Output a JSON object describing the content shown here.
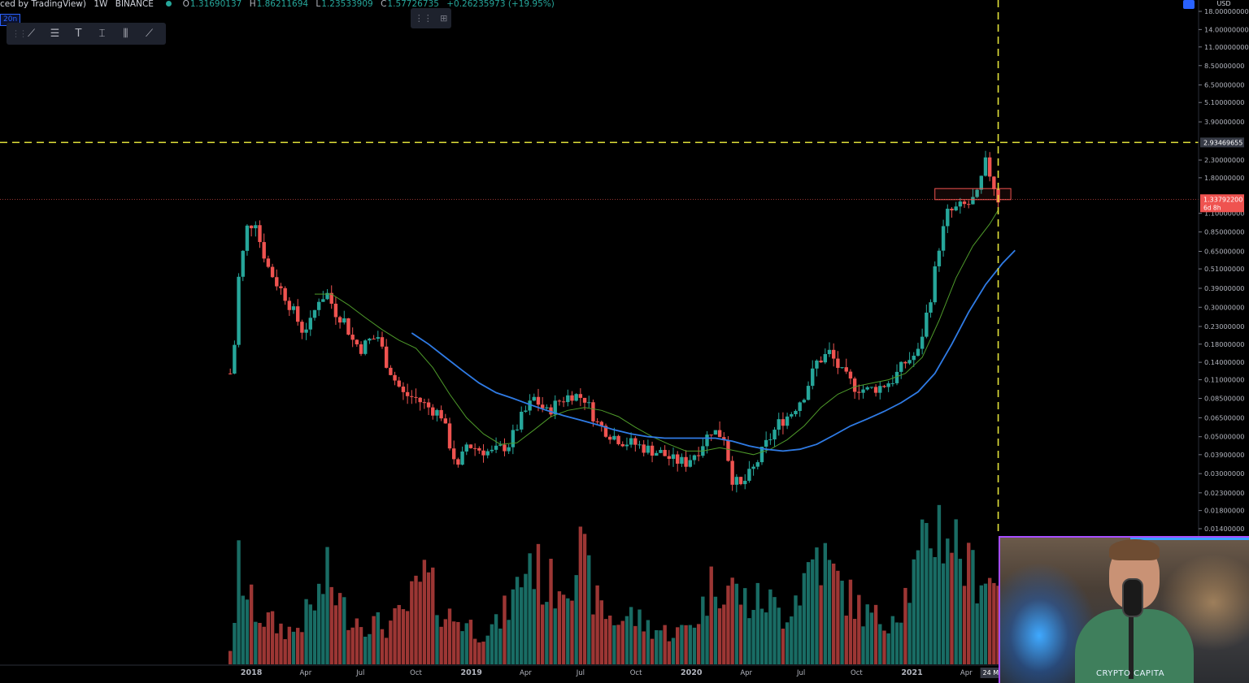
{
  "header": {
    "title": "ced by TradingView)",
    "interval": "1W",
    "exchange": "BINANCE",
    "open_label": "O",
    "open": "1.31690137",
    "high_label": "H",
    "high": "1.86211694",
    "low_label": "L",
    "low": "1.23533909",
    "close_label": "C",
    "close": "1.57726735",
    "change": "+0.26235973 (+19.95%)"
  },
  "tag_label": "20n",
  "toolbar": {
    "icons": [
      "trendline-icon",
      "fib-icon",
      "text-icon",
      "measure-icon",
      "pattern-icon",
      "brush-icon"
    ]
  },
  "colors": {
    "up": "#26a69a",
    "down": "#ef5350",
    "ma_fast": "#4e9a2a",
    "ma_slow": "#2f7be5",
    "crosshair": "#e2e23b",
    "box": "#ef5350"
  },
  "price_axis": {
    "currency": "USD",
    "scale": "log",
    "ticks": [
      "18.00000000",
      "14.00000000",
      "11.00000000",
      "8.50000000",
      "6.50000000",
      "5.10000000",
      "3.90000000",
      "2.30000000",
      "1.80000000",
      "1.10000000",
      "0.85000000",
      "0.65000000",
      "0.51000000",
      "0.39000000",
      "0.30000000",
      "0.23000000",
      "0.18000000",
      "0.14000000",
      "0.11000000",
      "0.08500000",
      "0.06500000",
      "0.05000000",
      "0.03900000",
      "0.03000000",
      "0.02300000",
      "0.01800000",
      "0.01400000"
    ],
    "crosshair_label": "2.93469655",
    "last_price_label": "1.33792200",
    "countdown_label": "6d 8h"
  },
  "time_axis": {
    "ticks": [
      {
        "label": "2018",
        "year": true,
        "date": "2018-01-01"
      },
      {
        "label": "Apr",
        "year": false,
        "date": "2018-04-01"
      },
      {
        "label": "Jul",
        "year": false,
        "date": "2018-07-01"
      },
      {
        "label": "Oct",
        "year": false,
        "date": "2018-10-01"
      },
      {
        "label": "2019",
        "year": true,
        "date": "2019-01-01"
      },
      {
        "label": "Apr",
        "year": false,
        "date": "2019-04-01"
      },
      {
        "label": "Jul",
        "year": false,
        "date": "2019-07-01"
      },
      {
        "label": "Oct",
        "year": false,
        "date": "2019-10-01"
      },
      {
        "label": "2020",
        "year": true,
        "date": "2020-01-01"
      },
      {
        "label": "Apr",
        "year": false,
        "date": "2020-04-01"
      },
      {
        "label": "Jul",
        "year": false,
        "date": "2020-07-01"
      },
      {
        "label": "Oct",
        "year": false,
        "date": "2020-10-01"
      },
      {
        "label": "2021",
        "year": true,
        "date": "2021-01-01"
      },
      {
        "label": "Apr",
        "year": false,
        "date": "2021-04-01"
      }
    ],
    "crosshair_label": "24 M"
  },
  "chart_data": {
    "type": "candlestick",
    "interval": "1W",
    "exchange": "BINANCE",
    "scale": "log",
    "ylim": [
      0.014,
      18
    ],
    "xlim": [
      "2017-11-20",
      "2021-05-30"
    ],
    "crosshair": {
      "price": 2.93469655,
      "date": "2021-05-24"
    },
    "last_price": 1.337922,
    "resistance_box": {
      "from": "2021-02-08",
      "to": "2021-06-14",
      "low": 1.33,
      "high": 1.55
    },
    "price_points": [
      [
        "2017-11-27",
        0.12
      ],
      [
        "2017-12-04",
        0.18
      ],
      [
        "2017-12-11",
        0.45
      ],
      [
        "2017-12-25",
        0.9
      ],
      [
        "2018-01-08",
        1.0
      ],
      [
        "2018-01-15",
        0.75
      ],
      [
        "2018-01-29",
        0.52
      ],
      [
        "2018-02-12",
        0.42
      ],
      [
        "2018-02-26",
        0.35
      ],
      [
        "2018-03-12",
        0.28
      ],
      [
        "2018-03-26",
        0.22
      ],
      [
        "2018-04-09",
        0.24
      ],
      [
        "2018-04-23",
        0.34
      ],
      [
        "2018-05-07",
        0.36
      ],
      [
        "2018-05-21",
        0.28
      ],
      [
        "2018-06-04",
        0.25
      ],
      [
        "2018-06-18",
        0.19
      ],
      [
        "2018-07-02",
        0.17
      ],
      [
        "2018-07-16",
        0.19
      ],
      [
        "2018-07-30",
        0.2
      ],
      [
        "2018-08-13",
        0.14
      ],
      [
        "2018-08-27",
        0.11
      ],
      [
        "2018-09-10",
        0.09
      ],
      [
        "2018-10-01",
        0.085
      ],
      [
        "2018-10-22",
        0.075
      ],
      [
        "2018-11-12",
        0.068
      ],
      [
        "2018-11-26",
        0.045
      ],
      [
        "2018-12-10",
        0.032
      ],
      [
        "2018-12-24",
        0.045
      ],
      [
        "2019-01-14",
        0.042
      ],
      [
        "2019-02-04",
        0.04
      ],
      [
        "2019-03-04",
        0.045
      ],
      [
        "2019-03-25",
        0.065
      ],
      [
        "2019-04-15",
        0.085
      ],
      [
        "2019-05-06",
        0.07
      ],
      [
        "2019-05-27",
        0.082
      ],
      [
        "2019-06-17",
        0.09
      ],
      [
        "2019-07-08",
        0.085
      ],
      [
        "2019-07-29",
        0.06
      ],
      [
        "2019-08-19",
        0.052
      ],
      [
        "2019-09-09",
        0.047
      ],
      [
        "2019-09-30",
        0.045
      ],
      [
        "2019-10-21",
        0.042
      ],
      [
        "2019-11-11",
        0.04
      ],
      [
        "2019-12-02",
        0.036
      ],
      [
        "2019-12-23",
        0.035
      ],
      [
        "2020-01-13",
        0.042
      ],
      [
        "2020-02-03",
        0.055
      ],
      [
        "2020-02-24",
        0.05
      ],
      [
        "2020-03-09",
        0.028
      ],
      [
        "2020-03-23",
        0.025
      ],
      [
        "2020-04-13",
        0.032
      ],
      [
        "2020-05-04",
        0.045
      ],
      [
        "2020-05-25",
        0.06
      ],
      [
        "2020-06-15",
        0.07
      ],
      [
        "2020-07-06",
        0.09
      ],
      [
        "2020-07-27",
        0.14
      ],
      [
        "2020-08-17",
        0.16
      ],
      [
        "2020-09-07",
        0.12
      ],
      [
        "2020-09-28",
        0.1
      ],
      [
        "2020-10-19",
        0.095
      ],
      [
        "2020-11-09",
        0.1
      ],
      [
        "2020-11-30",
        0.11
      ],
      [
        "2020-12-21",
        0.14
      ],
      [
        "2021-01-11",
        0.16
      ],
      [
        "2021-02-01",
        0.35
      ],
      [
        "2021-02-15",
        0.7
      ],
      [
        "2021-03-01",
        1.1
      ],
      [
        "2021-03-22",
        1.2
      ],
      [
        "2021-04-05",
        1.25
      ],
      [
        "2021-04-19",
        1.4
      ],
      [
        "2021-05-03",
        2.2
      ],
      [
        "2021-05-10",
        1.9
      ],
      [
        "2021-05-17",
        1.6
      ],
      [
        "2021-05-24",
        1.34
      ]
    ],
    "ma_fast_points": [
      [
        "2018-04-16",
        0.36
      ],
      [
        "2018-05-14",
        0.36
      ],
      [
        "2018-06-11",
        0.31
      ],
      [
        "2018-07-09",
        0.26
      ],
      [
        "2018-08-06",
        0.22
      ],
      [
        "2018-09-03",
        0.19
      ],
      [
        "2018-10-01",
        0.17
      ],
      [
        "2018-10-29",
        0.13
      ],
      [
        "2018-11-26",
        0.09
      ],
      [
        "2018-12-24",
        0.065
      ],
      [
        "2019-01-21",
        0.052
      ],
      [
        "2019-02-18",
        0.045
      ],
      [
        "2019-03-18",
        0.046
      ],
      [
        "2019-04-15",
        0.055
      ],
      [
        "2019-05-13",
        0.066
      ],
      [
        "2019-06-10",
        0.072
      ],
      [
        "2019-07-08",
        0.075
      ],
      [
        "2019-08-05",
        0.072
      ],
      [
        "2019-09-02",
        0.066
      ],
      [
        "2019-09-30",
        0.057
      ],
      [
        "2019-10-28",
        0.05
      ],
      [
        "2019-11-25",
        0.045
      ],
      [
        "2019-12-23",
        0.041
      ],
      [
        "2020-01-20",
        0.041
      ],
      [
        "2020-02-17",
        0.043
      ],
      [
        "2020-03-16",
        0.041
      ],
      [
        "2020-04-13",
        0.039
      ],
      [
        "2020-05-11",
        0.042
      ],
      [
        "2020-06-08",
        0.048
      ],
      [
        "2020-07-06",
        0.058
      ],
      [
        "2020-08-03",
        0.075
      ],
      [
        "2020-08-31",
        0.09
      ],
      [
        "2020-09-28",
        0.1
      ],
      [
        "2020-10-26",
        0.105
      ],
      [
        "2020-11-23",
        0.11
      ],
      [
        "2020-12-21",
        0.12
      ],
      [
        "2021-01-18",
        0.15
      ],
      [
        "2021-02-15",
        0.25
      ],
      [
        "2021-03-15",
        0.45
      ],
      [
        "2021-04-12",
        0.7
      ],
      [
        "2021-05-10",
        0.95
      ],
      [
        "2021-05-24",
        1.15
      ]
    ],
    "ma_slow_points": [
      [
        "2018-09-24",
        0.21
      ],
      [
        "2018-10-22",
        0.18
      ],
      [
        "2018-11-19",
        0.15
      ],
      [
        "2018-12-17",
        0.125
      ],
      [
        "2019-01-14",
        0.105
      ],
      [
        "2019-02-11",
        0.092
      ],
      [
        "2019-03-11",
        0.085
      ],
      [
        "2019-04-08",
        0.078
      ],
      [
        "2019-05-06",
        0.072
      ],
      [
        "2019-06-03",
        0.067
      ],
      [
        "2019-07-01",
        0.063
      ],
      [
        "2019-07-29",
        0.059
      ],
      [
        "2019-08-26",
        0.055
      ],
      [
        "2019-09-23",
        0.052
      ],
      [
        "2019-10-21",
        0.05
      ],
      [
        "2019-11-18",
        0.049
      ],
      [
        "2019-12-16",
        0.049
      ],
      [
        "2020-01-13",
        0.049
      ],
      [
        "2020-02-10",
        0.049
      ],
      [
        "2020-03-09",
        0.047
      ],
      [
        "2020-04-06",
        0.044
      ],
      [
        "2020-05-04",
        0.042
      ],
      [
        "2020-06-01",
        0.041
      ],
      [
        "2020-06-29",
        0.042
      ],
      [
        "2020-07-27",
        0.045
      ],
      [
        "2020-08-24",
        0.051
      ],
      [
        "2020-09-21",
        0.058
      ],
      [
        "2020-10-19",
        0.064
      ],
      [
        "2020-11-16",
        0.071
      ],
      [
        "2020-12-14",
        0.08
      ],
      [
        "2021-01-11",
        0.093
      ],
      [
        "2021-02-08",
        0.12
      ],
      [
        "2021-03-08",
        0.18
      ],
      [
        "2021-04-05",
        0.28
      ],
      [
        "2021-05-03",
        0.41
      ],
      [
        "2021-05-31",
        0.55
      ],
      [
        "2021-06-21",
        0.66
      ]
    ],
    "volume_points": [
      [
        "2017-11-27",
        0.15
      ],
      [
        "2017-12-04",
        0.3
      ],
      [
        "2017-12-11",
        0.95
      ],
      [
        "2017-12-25",
        0.6
      ],
      [
        "2018-01-15",
        0.45
      ],
      [
        "2018-02-12",
        0.35
      ],
      [
        "2018-03-12",
        0.3
      ],
      [
        "2018-04-16",
        0.55
      ],
      [
        "2018-05-07",
        0.8
      ],
      [
        "2018-06-04",
        0.5
      ],
      [
        "2018-07-02",
        0.4
      ],
      [
        "2018-08-13",
        0.35
      ],
      [
        "2018-09-10",
        0.45
      ],
      [
        "2018-10-15",
        0.8
      ],
      [
        "2018-11-19",
        0.45
      ],
      [
        "2018-12-17",
        0.4
      ],
      [
        "2019-01-14",
        0.3
      ],
      [
        "2019-02-11",
        0.35
      ],
      [
        "2019-03-11",
        0.6
      ],
      [
        "2019-04-08",
        1.0
      ],
      [
        "2019-05-06",
        0.7
      ],
      [
        "2019-06-03",
        0.8
      ],
      [
        "2019-07-01",
        1.0
      ],
      [
        "2019-07-29",
        0.55
      ],
      [
        "2019-08-26",
        0.4
      ],
      [
        "2019-09-23",
        0.45
      ],
      [
        "2019-10-21",
        0.35
      ],
      [
        "2019-11-18",
        0.3
      ],
      [
        "2019-12-16",
        0.3
      ],
      [
        "2020-01-13",
        0.45
      ],
      [
        "2020-02-10",
        0.8
      ],
      [
        "2020-03-09",
        0.7
      ],
      [
        "2020-04-06",
        0.55
      ],
      [
        "2020-05-04",
        0.6
      ],
      [
        "2020-06-01",
        0.45
      ],
      [
        "2020-06-29",
        0.7
      ],
      [
        "2020-07-27",
        1.05
      ],
      [
        "2020-08-24",
        0.8
      ],
      [
        "2020-09-21",
        0.6
      ],
      [
        "2020-10-19",
        0.45
      ],
      [
        "2020-11-16",
        0.4
      ],
      [
        "2020-12-14",
        0.55
      ],
      [
        "2021-01-11",
        0.9
      ],
      [
        "2021-02-08",
        1.3
      ],
      [
        "2021-03-08",
        1.2
      ],
      [
        "2021-04-05",
        0.85
      ],
      [
        "2021-05-03",
        0.85
      ],
      [
        "2021-05-24",
        0.7
      ]
    ]
  },
  "webcam": {
    "overlay_text": "CRYPTO CAPITA"
  }
}
